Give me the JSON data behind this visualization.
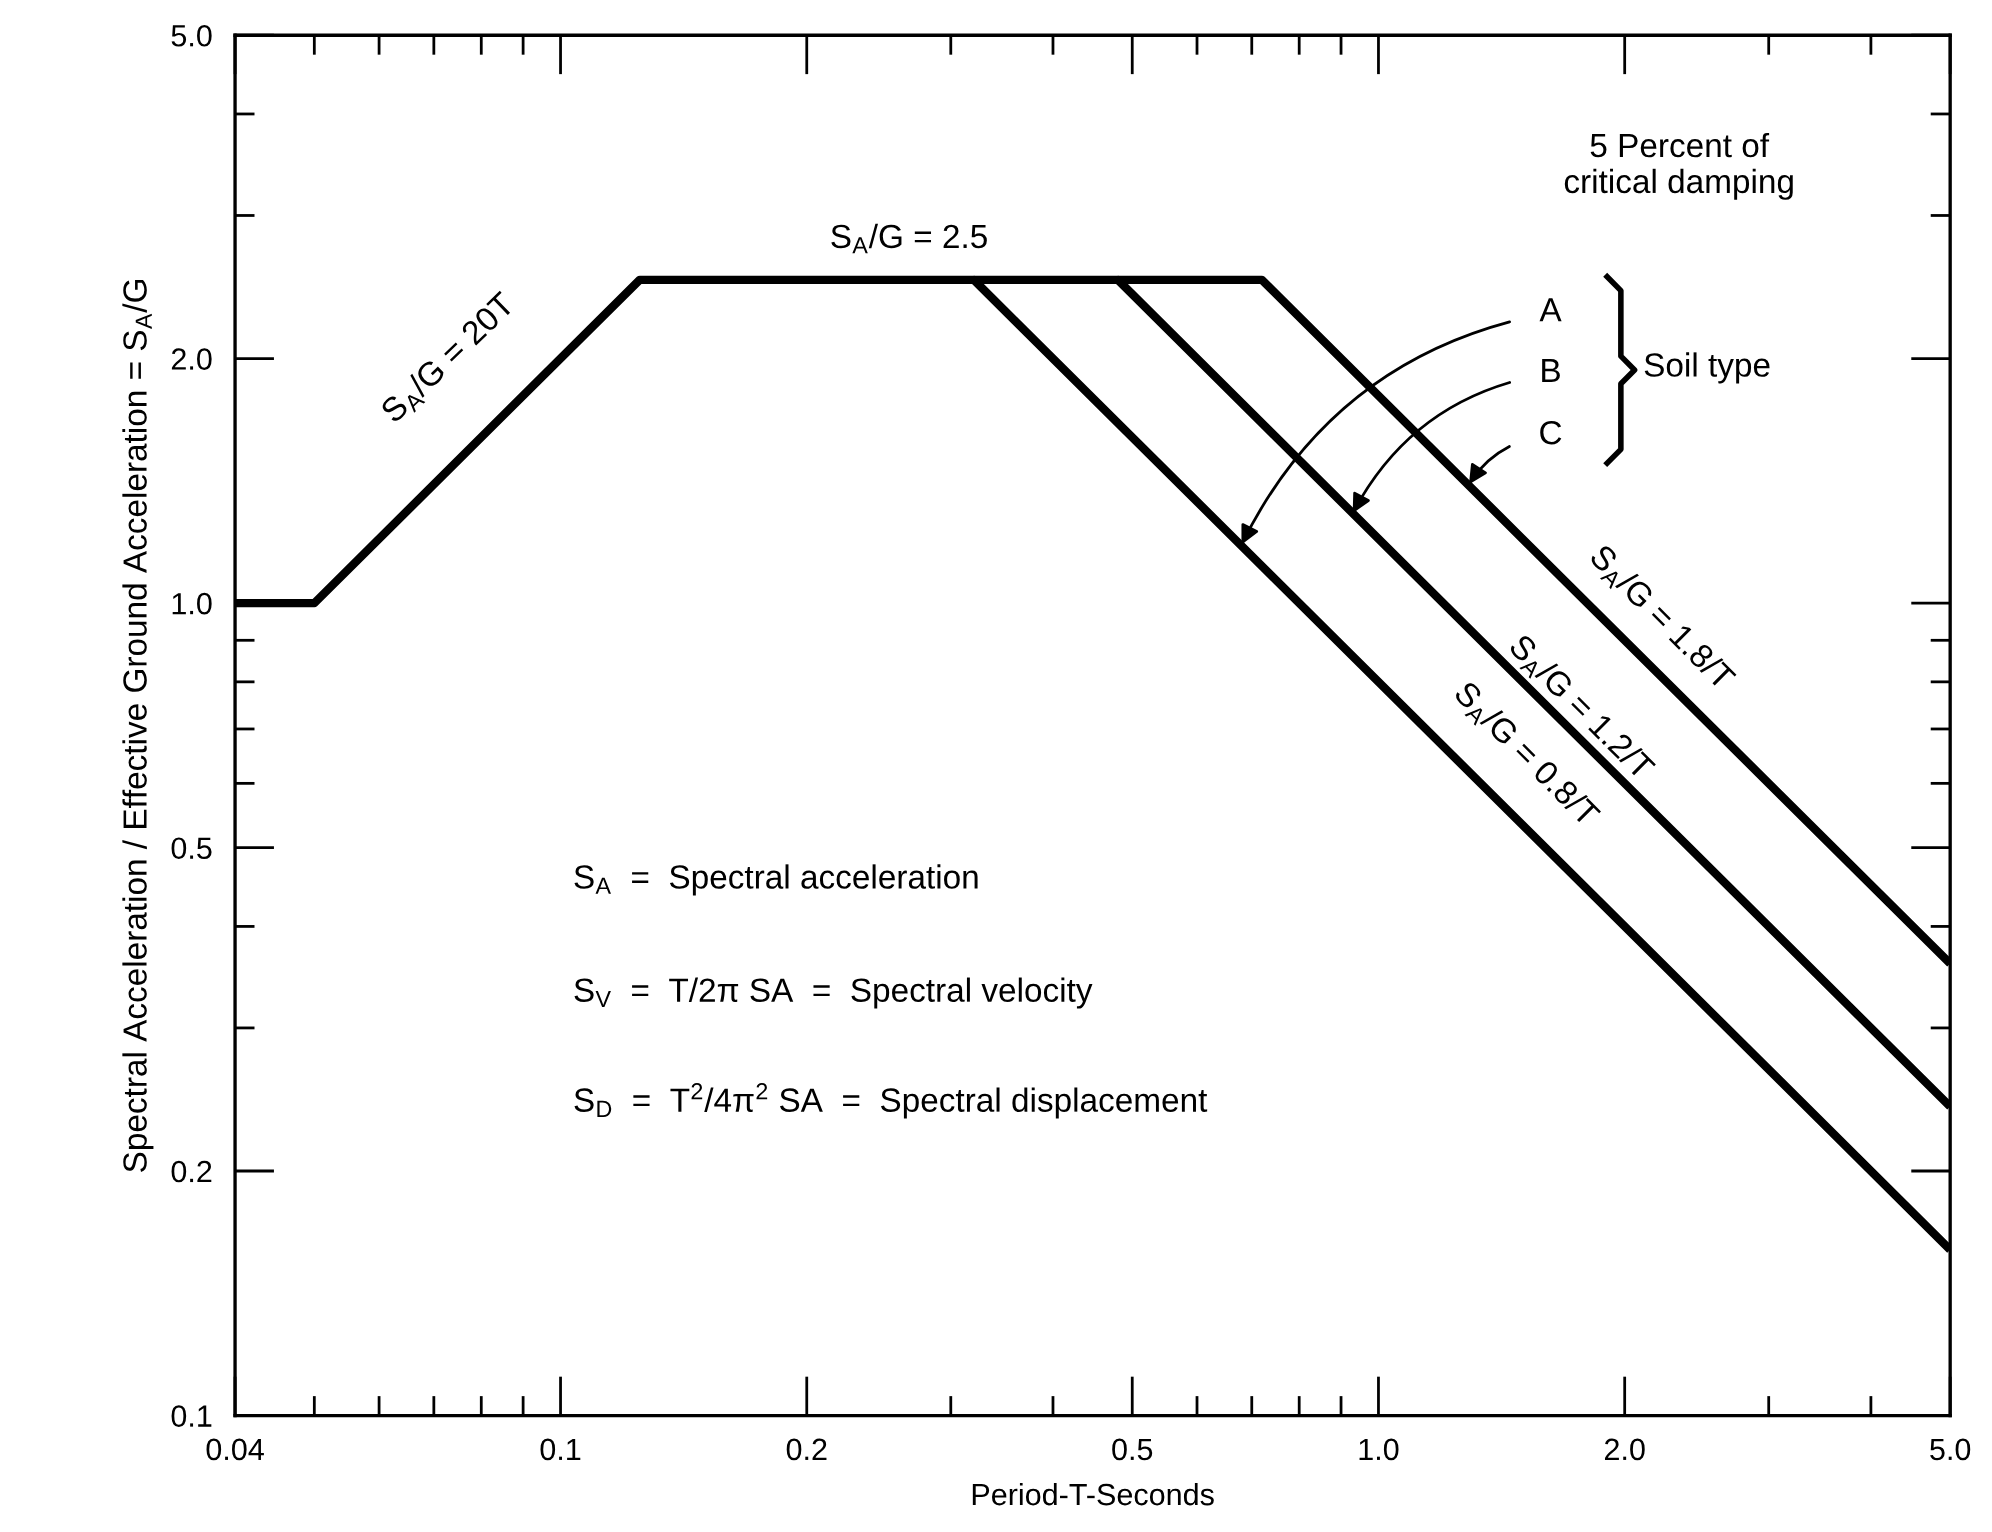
{
  "chart_data": {
    "type": "line",
    "xlabel": "Period-T-Seconds",
    "ylabel": "Spectral Acceleration / Effective Ground Acceleration = S$_{A}$/G",
    "log": "xy",
    "xlim": [
      0.04,
      5.0
    ],
    "ylim": [
      0.1,
      5.0
    ],
    "xticks": [
      0.04,
      0.1,
      0.2,
      0.5,
      {
        "value": 1,
        "label": "1.0"
      },
      {
        "value": 2,
        "label": "2.0"
      },
      {
        "value": 5,
        "label": "5.0"
      }
    ],
    "yticks": [
      0.1,
      0.2,
      0.5,
      {
        "value": 1,
        "label": "1.0"
      },
      {
        "value": 2,
        "label": "2.0"
      },
      {
        "value": 5,
        "label": "5.0"
      }
    ],
    "grid": false,
    "marker": "none",
    "line_style": "solid",
    "series": [
      {
        "color": "#000000",
        "x": [
          0.04,
          0.05,
          0.125,
          0.32,
          5.0
        ],
        "values": [
          1.0,
          1.0,
          2.5,
          2.5,
          0.16
        ]
      },
      {
        "color": "#000000",
        "x": [
          0.32,
          0.48,
          5.0
        ],
        "values": [
          2.5,
          2.5,
          0.24
        ]
      },
      {
        "color": "#000000",
        "x": [
          0.48,
          0.72,
          5.0
        ],
        "values": [
          2.5,
          2.5,
          0.36
        ]
      }
    ],
    "annotations": [
      "S$_{A}$/G = 20T",
      "S$_{A}$/G = 2.5",
      "S$_{A}$/G = 1.8/T",
      "S$_{A}$/G = 1.2/T",
      "S$_{A}$/G = 0.8/T",
      "5 Percent of\ncritical damping",
      "Soil type",
      "S$_{A}$  =  Spectral acceleration",
      "S$_{V}$  =  T/2π SA  =  Spectral velocity",
      "S$_{D}$  =  T$^{2}$/4π$^{2}$ SA  =  Spectral displacement",
      {
        "text": "A",
        "x": 0.68,
        "y": 1.18
      },
      {
        "text": "B",
        "x": 0.93,
        "y": 1.29
      },
      {
        "text": "C",
        "x": 1.29,
        "y": 1.4
      }
    ]
  }
}
